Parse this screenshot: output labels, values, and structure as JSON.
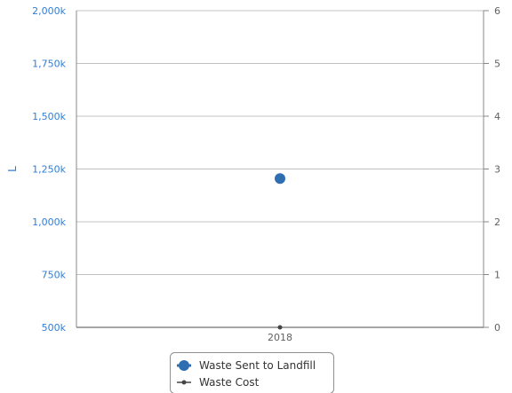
{
  "chart_data": {
    "type": "line",
    "categories": [
      "2018"
    ],
    "series": [
      {
        "name": "Waste Sent to Landfill",
        "axis": "left",
        "values": [
          1205000
        ],
        "color": "#2f6eb0"
      },
      {
        "name": "Waste Cost",
        "axis": "right",
        "values": [
          0
        ],
        "color": "#444444"
      }
    ],
    "y_left": {
      "label": "L",
      "ylim": [
        500000,
        2000000
      ],
      "ticks": [
        500000,
        750000,
        1000000,
        1250000,
        1500000,
        1750000,
        2000000
      ],
      "tick_labels": [
        "500k",
        "750k",
        "1,000k",
        "1,250k",
        "1,500k",
        "1,750k",
        "2,000k"
      ]
    },
    "y_right": {
      "ylim": [
        0,
        6
      ],
      "ticks": [
        0,
        1,
        2,
        3,
        4,
        5,
        6
      ],
      "tick_labels": [
        "0",
        "1",
        "2",
        "3",
        "4",
        "5",
        "6"
      ]
    },
    "grid": true,
    "legend": "bottom",
    "colors": {
      "left_axis": "#2f7ed8",
      "grid": "#c0c0c0",
      "axis_line": "#888888"
    }
  }
}
